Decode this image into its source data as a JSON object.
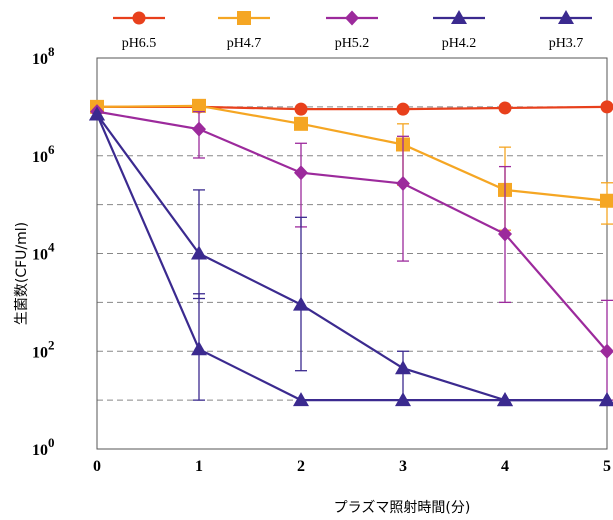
{
  "chart_data": {
    "type": "line",
    "title": "",
    "xlabel": "プラズマ照射時間(分)",
    "ylabel": "生菌数(CFU/ml)",
    "x": [
      0,
      1,
      2,
      3,
      4,
      5
    ],
    "xlim": [
      0,
      5
    ],
    "ylim": [
      1,
      100000000
    ],
    "y_scale": "log",
    "y_ticks": [
      {
        "base": "10",
        "exp": "0"
      },
      {
        "base": "10",
        "exp": "2"
      },
      {
        "base": "10",
        "exp": "4"
      },
      {
        "base": "10",
        "exp": "6"
      },
      {
        "base": "10",
        "exp": "8"
      }
    ],
    "x_ticks": [
      "0",
      "1",
      "2",
      "3",
      "4",
      "5"
    ],
    "grid": "horizontal dashed at each decade",
    "legend_position": "top",
    "series": [
      {
        "name": "pH6.5",
        "color": "#e8401c",
        "marker": "circle",
        "values": [
          10000000,
          10000000,
          9000000,
          9000000,
          9500000,
          10000000
        ],
        "err_low": [
          null,
          null,
          null,
          null,
          null,
          null
        ],
        "err_high": [
          null,
          null,
          null,
          null,
          null,
          null
        ]
      },
      {
        "name": "pH4.7",
        "color": "#f5a623",
        "marker": "square",
        "values": [
          10000000,
          10500000,
          4500000,
          1700000,
          200000,
          120000
        ],
        "err_low": [
          null,
          null,
          null,
          250000,
          30000,
          40000
        ],
        "err_high": [
          null,
          null,
          null,
          4500000,
          1500000,
          280000
        ]
      },
      {
        "name": "pH5.2",
        "color": "#9c2a9c",
        "marker": "diamond",
        "values": [
          8000000,
          3500000,
          450000,
          270000,
          25000,
          100
        ],
        "err_low": [
          null,
          900000,
          35000,
          7000,
          1000,
          10
        ],
        "err_high": [
          null,
          8000000,
          1800000,
          2500000,
          600000,
          1100
        ]
      },
      {
        "name": "pH4.2",
        "color": "#3b2a8f",
        "marker": "triangle",
        "values": [
          7000000,
          10000,
          900,
          45,
          10,
          10
        ],
        "err_low": [
          null,
          1200,
          40,
          10,
          null,
          null
        ],
        "err_high": [
          null,
          200000,
          55000,
          100,
          null,
          null
        ]
      },
      {
        "name": "pH3.7",
        "color": "#3b2a8f",
        "marker": "triangle",
        "values": [
          7000000,
          110,
          10,
          10,
          10,
          10
        ],
        "err_low": [
          null,
          10,
          null,
          null,
          null,
          null
        ],
        "err_high": [
          null,
          1500,
          null,
          null,
          null,
          null
        ]
      }
    ]
  }
}
